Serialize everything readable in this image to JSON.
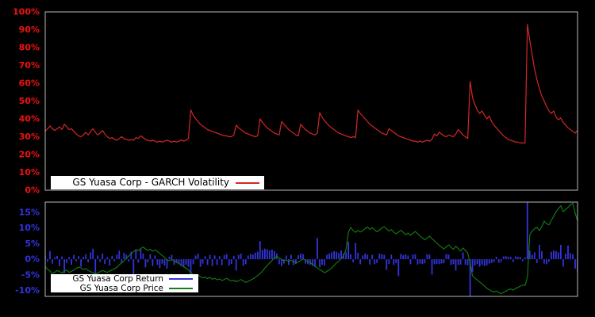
{
  "figure": {
    "background": "#000000",
    "panel_border_color": "#b8b8b8",
    "legend_background": "#ffffff",
    "legend_text_color": "#000000"
  },
  "chart_data": [
    {
      "type": "line",
      "panel": "top",
      "title": "",
      "xlabel": "",
      "ylabel": "",
      "x_tick_labels": [],
      "grid": false,
      "legend_position": "bottom-left-inside",
      "ylim": [
        0,
        100
      ],
      "tick_color": "#ee1111",
      "yticks": [
        {
          "v": 0,
          "label": "0%"
        },
        {
          "v": 10,
          "label": "10%"
        },
        {
          "v": 20,
          "label": "20%"
        },
        {
          "v": 30,
          "label": "30%"
        },
        {
          "v": 40,
          "label": "40%"
        },
        {
          "v": 50,
          "label": "50%"
        },
        {
          "v": 60,
          "label": "60%"
        },
        {
          "v": 70,
          "label": "70%"
        },
        {
          "v": 80,
          "label": "80%"
        },
        {
          "v": 90,
          "label": "90%"
        },
        {
          "v": 100,
          "label": "100%"
        }
      ],
      "series": [
        {
          "name": "GS Yuasa Corp - GARCH Volatility",
          "type": "line",
          "color": "#d42626",
          "unit": "%",
          "values": [
            33,
            34.5,
            36,
            34.5,
            33.5,
            34.5,
            35.5,
            34,
            37,
            35.5,
            34,
            34.5,
            33,
            31.5,
            30.5,
            30,
            31,
            32.5,
            31,
            33,
            34.5,
            32.5,
            31,
            32,
            33.5,
            31.5,
            30,
            29,
            29.5,
            28.5,
            28,
            29,
            30,
            29,
            28.5,
            28,
            28.5,
            28,
            29.5,
            29,
            30.5,
            29.5,
            28.5,
            28,
            27.5,
            28,
            27.5,
            27,
            27.5,
            27,
            27.5,
            28,
            27.5,
            27,
            27.5,
            27,
            27.5,
            28,
            27.5,
            28,
            29,
            45,
            42,
            40,
            38.5,
            37,
            36,
            35,
            34,
            33.5,
            33,
            32.5,
            32,
            31.5,
            31,
            30.5,
            30.5,
            30,
            30,
            31,
            36.5,
            35,
            34,
            33,
            32,
            31.5,
            31,
            30.5,
            30,
            30.5,
            40,
            38,
            36.5,
            35,
            34,
            33,
            32,
            31.5,
            31,
            38.5,
            37,
            35.5,
            34,
            33,
            32,
            31,
            30.5,
            37,
            35.5,
            34,
            33,
            32,
            31.5,
            31,
            32,
            43.5,
            41,
            39,
            37.5,
            36,
            35,
            34,
            33,
            32,
            31.5,
            31,
            30.5,
            30,
            29.5,
            30,
            29.5,
            45,
            43,
            41.5,
            40,
            38.5,
            37,
            36,
            35,
            34,
            33,
            32,
            31.5,
            31,
            34.5,
            33.5,
            32.5,
            31.5,
            30.5,
            30,
            29.5,
            29,
            28.5,
            28,
            27.5,
            27.5,
            27,
            27.5,
            27,
            27.5,
            28,
            27.5,
            28.5,
            31.5,
            30.5,
            32.5,
            31.5,
            30.5,
            30,
            31,
            30.5,
            30,
            31.5,
            34,
            32.5,
            31,
            30,
            29,
            61,
            52,
            48,
            45,
            43,
            44.5,
            42,
            40,
            41.5,
            38.5,
            36.5,
            35,
            33.5,
            32,
            30.5,
            29.5,
            28.5,
            28,
            27.5,
            27,
            27,
            26.5,
            26.5,
            26.5,
            93,
            84,
            76,
            68,
            62,
            57,
            53,
            50,
            47,
            44.5,
            43,
            44.5,
            41,
            39.5,
            40.5,
            38,
            36.5,
            35,
            34,
            33,
            32,
            33.5
          ]
        }
      ]
    },
    {
      "type": "bar+line",
      "panel": "bottom",
      "title": "",
      "xlabel": "",
      "ylabel": "",
      "x_tick_labels": [],
      "grid": false,
      "legend_position": "bottom-left-inside",
      "ylim": [
        -11.9,
        18.3
      ],
      "tick_color": "#3333dd",
      "yticks": [
        {
          "v": -10,
          "label": "-10%"
        },
        {
          "v": -5,
          "label": "-5%"
        },
        {
          "v": 0,
          "label": "0%"
        },
        {
          "v": 5,
          "label": "5%"
        },
        {
          "v": 10,
          "label": "10%"
        },
        {
          "v": 15,
          "label": "15%"
        }
      ],
      "series": [
        {
          "name": "GS Yuasa Corp Return",
          "type": "bar",
          "color": "#3333dd",
          "unit": "%",
          "values": [
            1.2,
            -0.8,
            2.6,
            -1.4,
            0.6,
            1.1,
            -2.2,
            0.9,
            -4.5,
            -1.2,
            0.7,
            -1.8,
            1.4,
            -0.6,
            1.0,
            -2.4,
            0.8,
            1.6,
            -1.0,
            2.2,
            3.4,
            -4.5,
            1.2,
            -0.9,
            1.8,
            -1.5,
            0.7,
            -2.0,
            1.1,
            -0.6,
            1.5,
            2.8,
            -1.2,
            2.0,
            1.4,
            -0.8,
            2.4,
            -5.0,
            2.9,
            -1.1,
            3.2,
            1.8,
            -2.6,
            -1.0,
            1.6,
            -2.2,
            1.2,
            -1.8,
            -2.8,
            -1.4,
            -2.0,
            -3.0,
            0.8,
            1.4,
            -1.8,
            -1.2,
            -1.6,
            -2.2,
            -2.6,
            -1.8,
            -2.4,
            -4.8,
            -1.6,
            1.2,
            1.8,
            -2.4,
            -1.4,
            1.0,
            -1.8,
            1.4,
            -2.2,
            1.2,
            -1.8,
            1.0,
            -1.9,
            1.3,
            1.6,
            -2.0,
            -1.5,
            1.1,
            -3.6,
            1.4,
            1.8,
            -2.1,
            -1.6,
            1.2,
            1.7,
            1.5,
            2.1,
            2.4,
            5.8,
            3.0,
            3.4,
            3.2,
            2.8,
            3.1,
            2.6,
            1.8,
            -1.6,
            -2.2,
            -1.4,
            1.2,
            -1.8,
            1.4,
            -1.9,
            -1.5,
            1.3,
            1.8,
            1.6,
            -1.4,
            -1.6,
            -1.8,
            -2.1,
            -2.4,
            6.8,
            -2.6,
            -1.8,
            -2.0,
            1.4,
            1.8,
            2.2,
            2.6,
            2.4,
            2.0,
            2.8,
            1.8,
            2.2,
            5.6,
            1.6,
            -1.0,
            5.2,
            2.1,
            -1.6,
            1.2,
            1.8,
            1.5,
            -1.7,
            1.4,
            -1.6,
            -1.2,
            1.8,
            1.6,
            1.4,
            -3.4,
            -1.5,
            1.5,
            -1.8,
            -1.3,
            -5.4,
            1.7,
            1.3,
            1.6,
            1.2,
            -1.6,
            1.5,
            1.6,
            -1.7,
            -1.4,
            -1.5,
            -1.3,
            1.6,
            1.5,
            -4.9,
            -1.6,
            -1.5,
            -1.6,
            -1.4,
            -1.3,
            1.7,
            1.5,
            -1.8,
            -1.6,
            -3.6,
            -1.8,
            -1.7,
            2.2,
            -1.8,
            -1.9,
            -14.0,
            -4.0,
            -2.0,
            -1.6,
            -2.4,
            -1.8,
            -2.2,
            -1.9,
            -1.4,
            -1.2,
            -0.9,
            0.8,
            -1.2,
            -0.8,
            0.9,
            1.0,
            0.8,
            0.7,
            -0.9,
            0.9,
            0.8,
            0.7,
            -0.6,
            0.5,
            20.0,
            2.8,
            1.4,
            2.2,
            -1.2,
            4.6,
            2.6,
            -1.4,
            -1.6,
            -0.8,
            2.4,
            2.8,
            2.6,
            2.2,
            4.6,
            -2.4,
            1.8,
            4.4,
            2.0,
            1.6,
            -3.0,
            -4.2
          ]
        },
        {
          "name": "GS Yuasa Corp Price",
          "type": "line",
          "color": "#128012",
          "unit": "%",
          "values": [
            -2.4,
            -3.2,
            -3.8,
            -4.6,
            -4.2,
            -3.6,
            -4.0,
            -4.4,
            -3.8,
            -3.5,
            -4.2,
            -3.9,
            -3.4,
            -3.0,
            -2.5,
            -2.8,
            -3.3,
            -3.0,
            -3.6,
            -4.0,
            -4.3,
            -4.8,
            -4.4,
            -4.0,
            -3.6,
            -3.9,
            -4.2,
            -3.8,
            -3.4,
            -3.0,
            -2.6,
            -1.8,
            -1.2,
            -0.5,
            0.3,
            1.0,
            1.8,
            2.4,
            3.1,
            2.7,
            3.4,
            3.9,
            3.3,
            2.8,
            3.2,
            2.6,
            3.0,
            2.5,
            1.8,
            1.2,
            0.6,
            -0.2,
            -0.5,
            -0.1,
            -0.6,
            -1.0,
            -1.4,
            -1.8,
            -2.4,
            -2.9,
            -3.4,
            -4.4,
            -4.9,
            -5.3,
            -5.0,
            -5.6,
            -6.0,
            -5.7,
            -6.2,
            -5.8,
            -6.4,
            -6.1,
            -6.6,
            -6.3,
            -6.8,
            -6.5,
            -6.1,
            -6.6,
            -7.0,
            -6.7,
            -7.2,
            -6.9,
            -6.5,
            -7.0,
            -7.4,
            -7.1,
            -6.7,
            -6.3,
            -5.8,
            -5.2,
            -4.6,
            -3.8,
            -2.9,
            -2.0,
            -1.2,
            -0.4,
            0.4,
            0.9,
            0.4,
            -0.1,
            -0.5,
            -0.2,
            -0.7,
            -0.3,
            -0.8,
            -1.2,
            -0.9,
            -0.4,
            0.1,
            -0.3,
            -0.7,
            -1.1,
            -1.6,
            -2.2,
            -2.8,
            -3.3,
            -3.8,
            -4.3,
            -3.9,
            -3.4,
            -2.8,
            -2.0,
            -1.2,
            -0.6,
            0.2,
            1.2,
            3.0,
            8.6,
            10.2,
            9.2,
            8.6,
            9.3,
            8.7,
            9.2,
            9.8,
            10.3,
            9.6,
            10.1,
            9.4,
            8.8,
            9.4,
            10.0,
            10.4,
            9.7,
            9.0,
            9.5,
            8.7,
            8.1,
            8.7,
            9.3,
            8.6,
            7.8,
            8.4,
            7.7,
            8.3,
            8.9,
            8.2,
            7.5,
            6.8,
            6.2,
            6.8,
            7.4,
            6.6,
            5.9,
            5.2,
            4.5,
            3.9,
            3.3,
            4.0,
            4.6,
            3.8,
            3.2,
            4.2,
            3.4,
            2.6,
            3.6,
            2.8,
            2.0,
            -1.2,
            -5.3,
            -6.1,
            -6.6,
            -7.3,
            -7.9,
            -8.6,
            -9.3,
            -9.8,
            -10.2,
            -10.5,
            -10.2,
            -10.7,
            -11.0,
            -10.6,
            -10.2,
            -9.8,
            -9.5,
            -9.9,
            -9.4,
            -9.0,
            -8.6,
            -8.3,
            -8.4,
            -5.8,
            7.8,
            9.0,
            9.8,
            10.2,
            9.2,
            10.4,
            12.2,
            11.4,
            11.0,
            12.4,
            13.8,
            15.2,
            16.2,
            17.1,
            15.2,
            16.0,
            16.6,
            17.4,
            17.9,
            14.8,
            12.2
          ]
        }
      ]
    }
  ]
}
